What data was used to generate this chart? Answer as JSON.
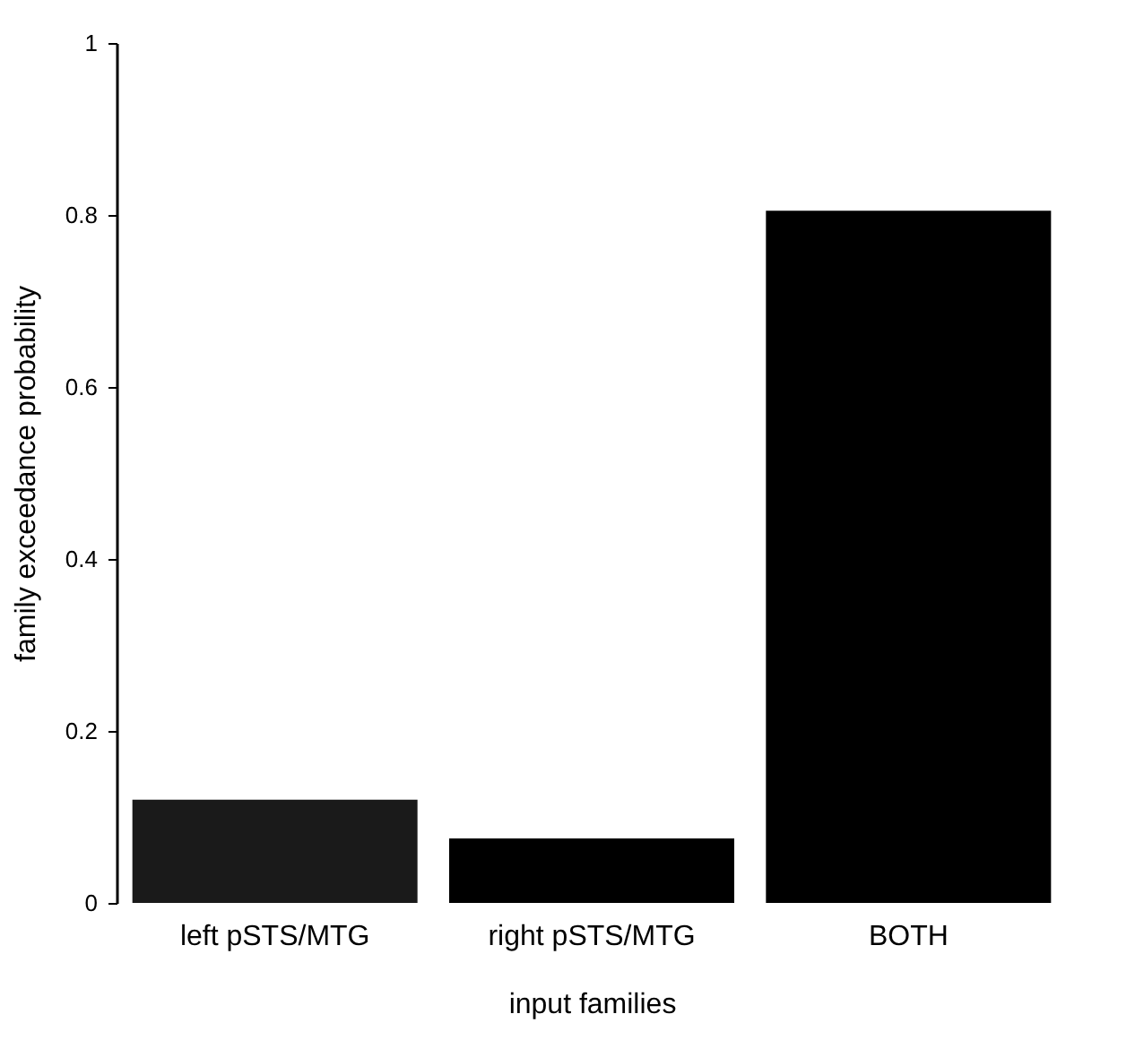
{
  "chart_data": {
    "type": "bar",
    "xlabel": "input families",
    "ylabel": "family exceedance probability",
    "categories": [
      "left pSTS/MTG",
      "right pSTS/MTG",
      "BOTH"
    ],
    "values": [
      0.12,
      0.075,
      0.805
    ],
    "colors": [
      "#1a1a1a",
      "#000000",
      "#000000"
    ],
    "ylim": [
      0,
      1
    ],
    "yticks": [
      0,
      0.2,
      0.4,
      0.6,
      0.8,
      1
    ],
    "grid": false
  }
}
